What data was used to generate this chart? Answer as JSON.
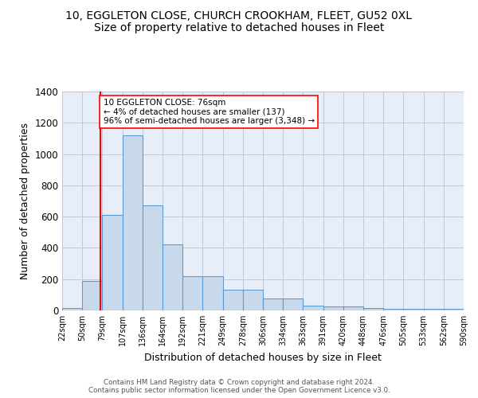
{
  "title1": "10, EGGLETON CLOSE, CHURCH CROOKHAM, FLEET, GU52 0XL",
  "title2": "Size of property relative to detached houses in Fleet",
  "xlabel": "Distribution of detached houses by size in Fleet",
  "ylabel": "Number of detached properties",
  "bar_values": [
    15,
    190,
    610,
    1120,
    670,
    425,
    220,
    220,
    130,
    130,
    75,
    75,
    30,
    25,
    25,
    15,
    10,
    10,
    10,
    10
  ],
  "bar_labels": [
    "22sqm",
    "50sqm",
    "79sqm",
    "107sqm",
    "136sqm",
    "164sqm",
    "192sqm",
    "221sqm",
    "249sqm",
    "278sqm",
    "306sqm",
    "334sqm",
    "363sqm",
    "391sqm",
    "420sqm",
    "448sqm",
    "476sqm",
    "505sqm",
    "533sqm",
    "562sqm",
    "590sqm"
  ],
  "bar_color": "#c9d9ec",
  "bar_edge_color": "#5b9bd5",
  "grid_color": "#c0c8d8",
  "bg_color": "#e8eef7",
  "annotation_box_text": "10 EGGLETON CLOSE: 76sqm\n← 4% of detached houses are smaller (137)\n96% of semi-detached houses are larger (3,348) →",
  "annotation_line_color": "red",
  "ylim": [
    0,
    1400
  ],
  "yticks": [
    0,
    200,
    400,
    600,
    800,
    1000,
    1200,
    1400
  ],
  "footer_text": "Contains HM Land Registry data © Crown copyright and database right 2024.\nContains public sector information licensed under the Open Government Licence v3.0.",
  "title1_fontsize": 10,
  "title2_fontsize": 10,
  "xlabel_fontsize": 9,
  "ylabel_fontsize": 9
}
